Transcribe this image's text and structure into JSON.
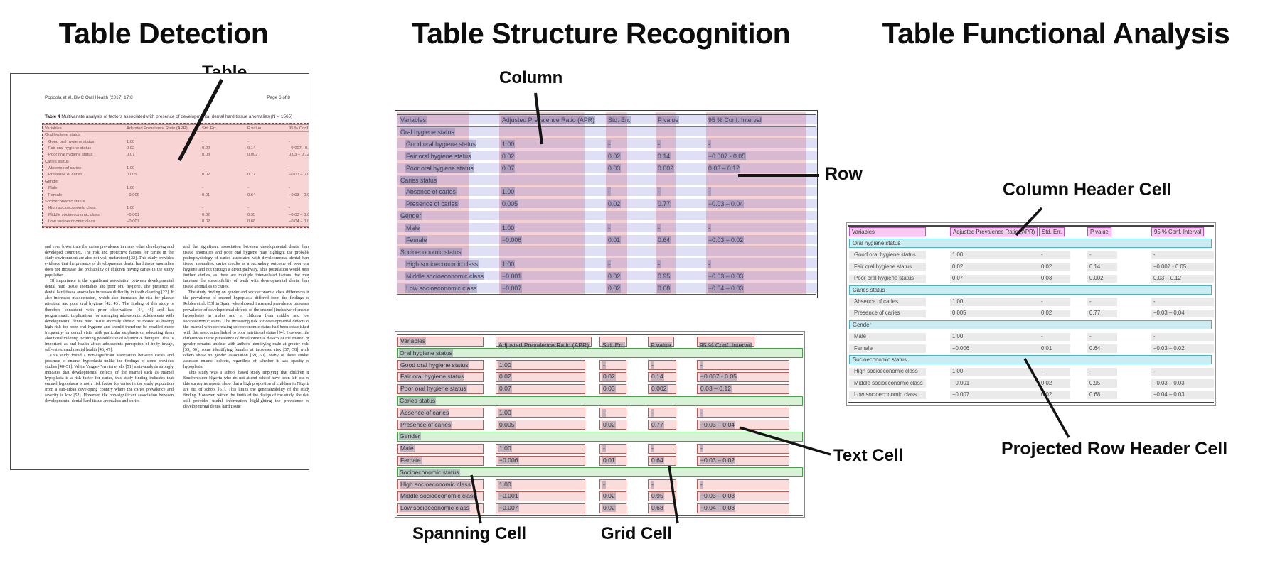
{
  "panels": {
    "detection": {
      "title": "Table Detection"
    },
    "structure": {
      "title": "Table Structure Recognition"
    },
    "functional": {
      "title": "Table Functional Analysis"
    }
  },
  "callouts": {
    "table": "Table",
    "column": "Column",
    "row": "Row",
    "spanning_cell": "Spanning Cell",
    "grid_cell": "Grid Cell",
    "text_cell": "Text Cell",
    "column_header_cell": "Column Header Cell",
    "projected_row_header_cell": "Projected Row Header Cell"
  },
  "document": {
    "header_left": "Popoola et al. BMC Oral Health  (2017) 17:8",
    "header_right": "Page 6 of 8",
    "caption_label": "Table 4",
    "caption_text": " Multivariate analysis of factors associated with presence of developmental dental hard tissue anomalies (N = 1565)",
    "body_left": [
      "and even lower than the caries prevalence in many other developing and developed countries. The risk and protective factors for caries in the study environment are also not well understood [32]. This study provides evidence that the presence of developmental dental hard tissue anomalies does not increase the probability of children having caries in the study population.",
      "Of importance is the significant association between developmental dental hard tissue anomalies and poor oral hygiene. The presence of dental hard tissue anomalies increases difficulty in tooth cleaning [22]. It also increases malocclusion, which also increases the risk for plaque retention and poor oral hygiene [42, 43]. The finding of this study is therefore consistent with prior observations [44, 45] and has programmatic implications for managing adolescents. Adolescents with developmental dental hard tissue anomaly should be treated as having high risk for poor oral hygiene and should therefore be recalled more frequently for dental visits with particular emphasis on educating them about oral toileting including possible use of adjunctive therapies. This is important as oral health affect adolescents perception of body image, self-esteem and mental health [46, 47].",
      "This study found a non-significant association between caries and presence of enamel hypoplasia unlike the findings of some previous studies [48–51]. While Vargas-Ferreira et al's [51] meta-analysis strongly indicates that developmental defects of the enamel such as enamel hypoplasia is a risk factor for caries, this study finding indicates that enamel hypoplasia is not a risk factor for caries in the study population from a sub-urban developing country where the caries prevalence and severity is low [52]. However, the non-significant association between developmental dental hard tissue anomalies and caries"
    ],
    "body_right": [
      "and the significant association between developmental dental hard tissue anomalies and poor oral hygiene may highlight the probable pathophysiology of caries associated with developmental dental hard tissue anomalies: caries results as a secondary outcome of poor oral hygiene and not through a direct pathway. This postulation would need further studies, as there are multiple inter-related factors that may increase the susceptibility of teeth with developmental dental hard tissue anomalies to caries.",
      "The study finding on gender and socioeconomic class differences in the prevalence of enamel hypoplasia differed from the findings of Robles et al. [53] in Spain who showed increased prevalence increased prevalence of developmental defects of the enamel (inclusive of enamel hypoplasia) in males and in children from middle and low socioeconomic status. The increasing risk for developmental defects of the enamel with decreasing socioeconomic status had been established, with this association linked to poor nutritional status [54]. However, the differences in the prevalence of developmental defects of the enamel by gender remains unclear with authors identifying male at greater risks [55, 56], some identifying females at increased risk [57, 58] while others show no gender association [59, 60]. Many of these studies assessed enamel defects, regardless of whether it was opacity or hypoplasia.",
      "This study was a school based study implying that children in Southwestern Nigeria who do not attend school have been left out of this survey as reports show that a high proportion of children in Nigeria are out of school [61]. This limits the generalizability of the study finding. However, within the limits of the design of the study, the data still provides useful information highlighting the prevalence of developmental dental hard tissue"
    ]
  },
  "table": {
    "columns": [
      "Variables",
      "Adjusted Prevalence Ratio (APR)",
      "Std. Err.",
      "P value",
      "95 % Conf. Interval"
    ],
    "rows": [
      {
        "type": "section",
        "cells": [
          "Oral hygiene status",
          "",
          "",
          "",
          ""
        ]
      },
      {
        "type": "data",
        "cells": [
          "Good oral hygiene status",
          "1.00",
          "-",
          "-",
          "-"
        ]
      },
      {
        "type": "data",
        "cells": [
          "Fair oral hygiene status",
          "0.02",
          "0.02",
          "0.14",
          "−0.007 - 0.05"
        ]
      },
      {
        "type": "data",
        "cells": [
          "Poor oral hygiene status",
          "0.07",
          "0.03",
          "0.002",
          "0.03 – 0.12"
        ]
      },
      {
        "type": "section",
        "cells": [
          "Caries status",
          "",
          "",
          "",
          ""
        ]
      },
      {
        "type": "data",
        "cells": [
          "Absence of caries",
          "1.00",
          "-",
          "-",
          "-"
        ]
      },
      {
        "type": "data",
        "cells": [
          "Presence of caries",
          "0.005",
          "0.02",
          "0.77",
          "−0.03 – 0.04"
        ]
      },
      {
        "type": "section",
        "cells": [
          "Gender",
          "",
          "",
          "",
          ""
        ]
      },
      {
        "type": "data",
        "cells": [
          "Male",
          "1.00",
          "-",
          "-",
          "-"
        ]
      },
      {
        "type": "data",
        "cells": [
          "Female",
          "−0.006",
          "0.01",
          "0.64",
          "−0.03 – 0.02"
        ]
      },
      {
        "type": "section",
        "cells": [
          "Socioeconomic status",
          "",
          "",
          "",
          ""
        ]
      },
      {
        "type": "data",
        "cells": [
          "High socioeconomic class",
          "1.00",
          "-",
          "-",
          "-"
        ]
      },
      {
        "type": "data",
        "cells": [
          "Middle socioeconomic class",
          "−0.001",
          "0.02",
          "0.95",
          "−0.03 – 0.03"
        ]
      },
      {
        "type": "data",
        "cells": [
          "Low socioeconomic class",
          "−0.007",
          "0.02",
          "0.68",
          "−0.04 – 0.03"
        ]
      }
    ]
  },
  "colors": {
    "detection_fill": "rgba(233,112,112,0.30)",
    "detection_border": "#9e3434",
    "column_band": "rgba(222,100,100,0.30)",
    "row_band": "rgba(108,108,214,0.22)",
    "grid_cell_fill": "#f9dddd",
    "grid_cell_border": "#bb5a55",
    "spanning_cell_fill": "#d9f2d7",
    "spanning_cell_border": "#44a147",
    "text_cell_bg": "rgba(110,110,140,0.38)",
    "column_header_fill": "#f8c9f1",
    "column_header_border": "#c04ec0",
    "projected_row_header_fill": "#cdecf2",
    "projected_row_header_border": "#44b5c4",
    "data_cell_bar": "#eaeaea",
    "rule": "#666666"
  }
}
